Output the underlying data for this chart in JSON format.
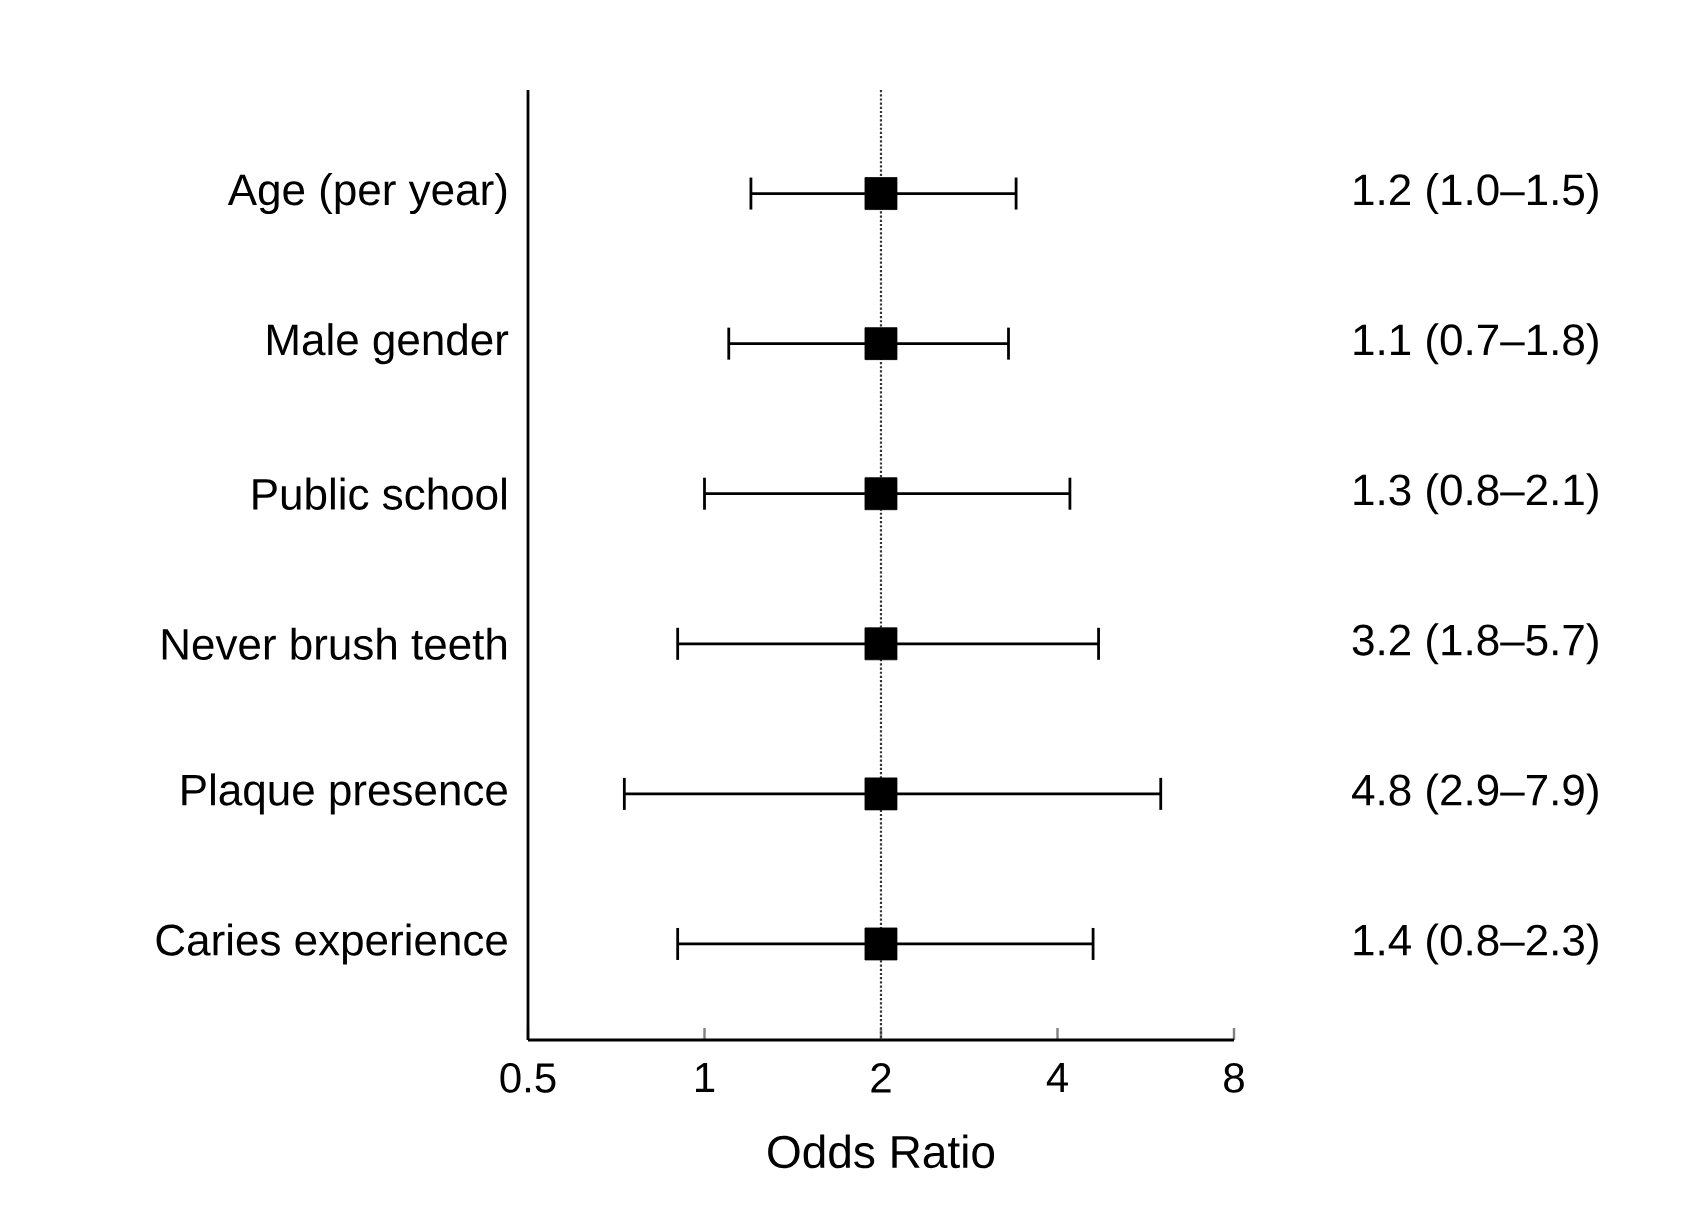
{
  "chart_data": {
    "type": "scatter",
    "orientation": "horizontal",
    "xlabel": "Odds Ratio",
    "categories": [
      "Age (per year)",
      "Male gender",
      "Public school",
      "Never brush teeth",
      "Plaque presence",
      "Caries experience"
    ],
    "values": [
      2,
      2,
      2,
      2,
      2,
      2
    ],
    "errors": [
      [
        1.2,
        3.4
      ],
      [
        1.1,
        3.3
      ],
      [
        1.0,
        4.2
      ],
      [
        0.9,
        4.7
      ],
      [
        0.73,
        6.0
      ],
      [
        0.9,
        4.6
      ]
    ],
    "color": "#000000",
    "marker": "square",
    "log": "x",
    "xlim": [
      0.5,
      8
    ],
    "xticks": [
      0.5,
      1,
      2,
      4,
      8
    ],
    "ref_lines": [
      {
        "axis": "x",
        "value": 2,
        "line_style": "dotted",
        "color": "#333333"
      }
    ],
    "annotations": [
      "1.2  (1.0–1.5)",
      "1.1  (0.7–1.8)",
      "1.3  (0.8–2.1)",
      "3.2  (1.8–5.7)",
      "4.8  (2.9–7.9)",
      "1.4  (0.8–2.3)"
    ],
    "grid": false
  }
}
